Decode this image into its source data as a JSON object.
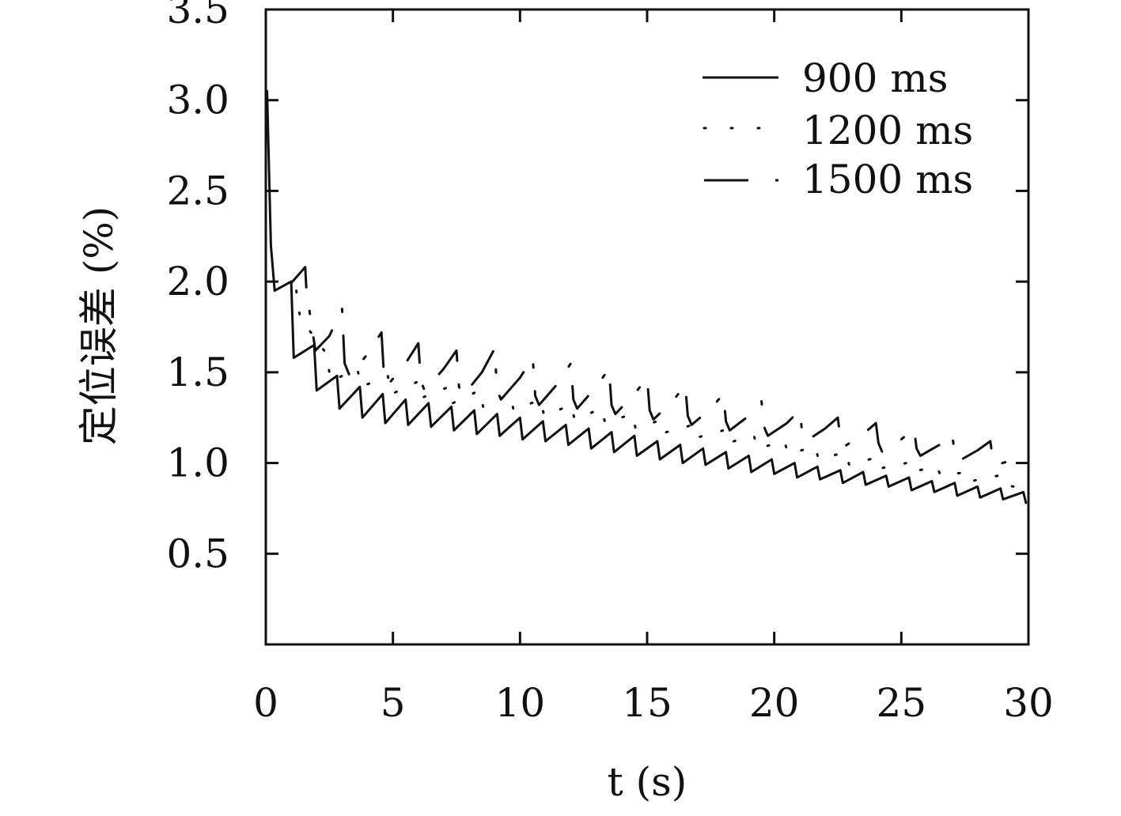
{
  "chart_data": {
    "type": "line",
    "xlabel": "t (s)",
    "ylabel": "定位误差 (%)",
    "xlim": [
      0,
      30
    ],
    "ylim": [
      0,
      3.5
    ],
    "xticks": [
      "0",
      "5",
      "10",
      "15",
      "20",
      "25",
      "30"
    ],
    "yticks": [
      "0.5",
      "1.0",
      "1.5",
      "2.0",
      "2.5",
      "3.0",
      "3.5"
    ],
    "grid": false,
    "legend_position": "top-right",
    "series": [
      {
        "name": "900 ms",
        "style": "solid",
        "period_s": 0.9,
        "x": [
          0.05,
          0.2,
          0.35,
          1.0,
          1.1,
          1.9,
          2.0,
          2.8,
          2.9,
          3.7,
          3.8,
          4.6,
          4.7,
          5.5,
          5.6,
          6.4,
          6.5,
          7.3,
          7.4,
          8.2,
          8.3,
          9.1,
          9.2,
          10.0,
          10.1,
          10.9,
          11.0,
          11.8,
          11.9,
          12.7,
          12.8,
          13.6,
          13.7,
          14.5,
          14.6,
          15.4,
          15.5,
          16.3,
          16.4,
          17.2,
          17.3,
          18.1,
          18.2,
          19.0,
          19.1,
          19.9,
          20.0,
          20.8,
          20.9,
          21.7,
          21.8,
          22.6,
          22.7,
          23.5,
          23.6,
          24.4,
          24.5,
          25.3,
          25.4,
          26.2,
          26.3,
          27.1,
          27.2,
          28.0,
          28.1,
          28.9,
          29.0,
          29.8,
          29.9
        ],
        "y": [
          3.05,
          2.2,
          1.95,
          2.0,
          1.58,
          1.65,
          1.4,
          1.48,
          1.3,
          1.42,
          1.25,
          1.38,
          1.22,
          1.35,
          1.21,
          1.33,
          1.2,
          1.31,
          1.18,
          1.29,
          1.16,
          1.27,
          1.15,
          1.25,
          1.13,
          1.23,
          1.12,
          1.21,
          1.1,
          1.19,
          1.08,
          1.17,
          1.06,
          1.15,
          1.04,
          1.12,
          1.02,
          1.1,
          1.0,
          1.08,
          0.99,
          1.06,
          0.97,
          1.04,
          0.95,
          1.02,
          0.94,
          1.0,
          0.92,
          0.98,
          0.91,
          0.96,
          0.89,
          0.95,
          0.88,
          0.93,
          0.87,
          0.92,
          0.85,
          0.9,
          0.84,
          0.89,
          0.82,
          0.87,
          0.81,
          0.86,
          0.8,
          0.84,
          0.78
        ]
      },
      {
        "name": "1200 ms",
        "style": "dotted",
        "period_s": 1.2,
        "x": [
          1.2,
          1.35,
          2.4,
          2.55,
          3.6,
          3.75,
          4.8,
          4.95,
          6.0,
          6.15,
          7.2,
          7.35,
          8.4,
          8.55,
          9.6,
          9.75,
          10.8,
          10.95,
          12.0,
          12.15,
          13.2,
          13.35,
          14.4,
          14.55,
          15.6,
          15.75,
          16.8,
          16.95,
          18.0,
          18.15,
          19.2,
          19.35,
          20.4,
          20.55,
          21.6,
          21.75,
          22.8,
          22.95,
          24.0,
          24.15,
          25.2,
          25.35,
          26.4,
          26.55,
          27.6,
          27.75,
          28.8,
          28.95,
          29.9
        ],
        "y": [
          1.95,
          1.8,
          1.6,
          1.45,
          1.52,
          1.42,
          1.48,
          1.38,
          1.45,
          1.36,
          1.42,
          1.33,
          1.4,
          1.31,
          1.38,
          1.29,
          1.35,
          1.26,
          1.32,
          1.24,
          1.3,
          1.22,
          1.27,
          1.19,
          1.24,
          1.17,
          1.21,
          1.14,
          1.18,
          1.11,
          1.15,
          1.08,
          1.12,
          1.05,
          1.09,
          1.02,
          1.06,
          0.99,
          1.03,
          0.97,
          1.0,
          0.95,
          0.98,
          0.93,
          0.95,
          0.9,
          0.93,
          0.88,
          0.86
        ]
      },
      {
        "name": "1500 ms",
        "style": "dash-dot",
        "period_s": 1.5,
        "x": [
          1.05,
          1.55,
          1.6,
          1.95,
          2.5,
          3.0,
          3.1,
          3.3,
          4.0,
          4.55,
          4.65,
          4.8,
          5.5,
          6.0,
          6.1,
          6.25,
          7.0,
          7.5,
          7.6,
          7.75,
          8.5,
          9.0,
          9.1,
          9.25,
          10.0,
          10.5,
          10.6,
          10.75,
          11.5,
          12.0,
          12.1,
          12.25,
          13.0,
          13.5,
          13.6,
          13.75,
          14.5,
          15.0,
          15.1,
          15.25,
          16.0,
          16.5,
          16.6,
          16.75,
          17.5,
          18.0,
          18.1,
          18.25,
          19.0,
          19.5,
          19.6,
          19.75,
          20.5,
          21.0,
          21.1,
          21.25,
          22.0,
          22.5,
          22.6,
          22.75,
          23.5,
          24.0,
          24.1,
          24.25,
          25.0,
          25.5,
          25.6,
          25.75,
          26.5,
          27.0,
          27.1,
          27.25,
          28.0,
          28.5,
          28.6,
          28.75,
          29.9
        ],
        "y": [
          2.0,
          2.08,
          1.95,
          1.62,
          1.7,
          1.85,
          1.55,
          1.48,
          1.6,
          1.72,
          1.48,
          1.43,
          1.55,
          1.66,
          1.45,
          1.4,
          1.52,
          1.62,
          1.42,
          1.37,
          1.5,
          1.63,
          1.4,
          1.35,
          1.47,
          1.58,
          1.37,
          1.32,
          1.44,
          1.55,
          1.35,
          1.3,
          1.42,
          1.52,
          1.32,
          1.27,
          1.38,
          1.47,
          1.29,
          1.24,
          1.34,
          1.43,
          1.26,
          1.21,
          1.3,
          1.38,
          1.23,
          1.18,
          1.26,
          1.34,
          1.2,
          1.15,
          1.22,
          1.29,
          1.17,
          1.12,
          1.19,
          1.25,
          1.14,
          1.09,
          1.16,
          1.22,
          1.11,
          1.06,
          1.13,
          1.19,
          1.08,
          1.04,
          1.1,
          1.16,
          1.05,
          1.01,
          1.07,
          1.12,
          1.02,
          0.99,
          1.04
        ]
      }
    ]
  }
}
